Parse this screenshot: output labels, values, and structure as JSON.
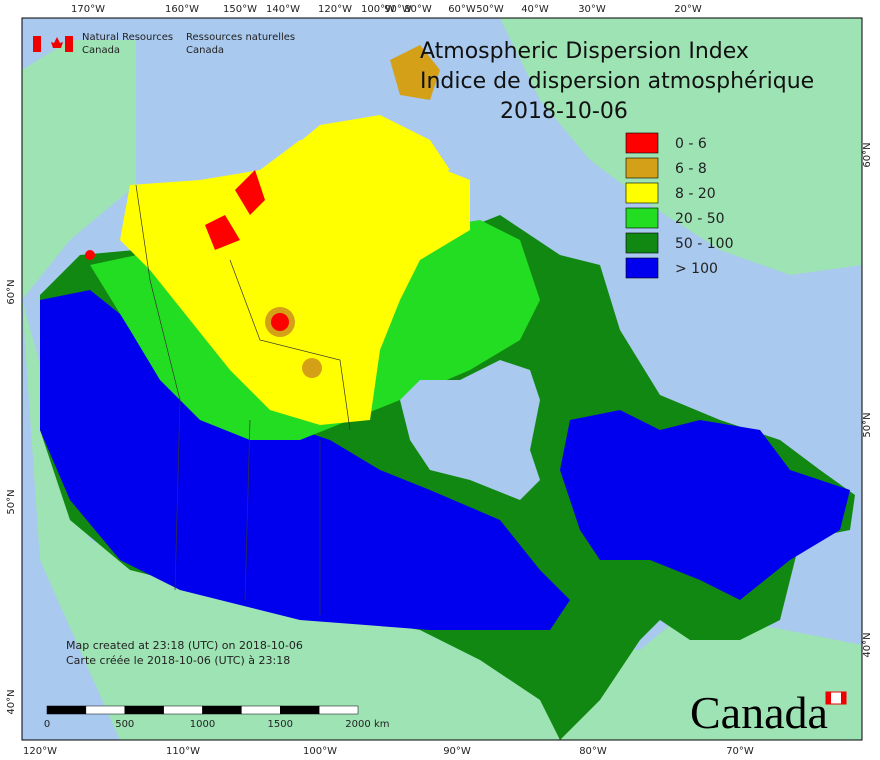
{
  "header": {
    "agency_en": [
      "Natural Resources",
      "Canada"
    ],
    "agency_fr": [
      "Ressources naturelles",
      "Canada"
    ]
  },
  "title": {
    "lines": [
      "Atmospheric Dispersion Index",
      "Indice de dispersion atmosphérique"
    ],
    "date": "2018-10-06"
  },
  "legend": [
    {
      "label": "0 - 6",
      "color": "#ff0000"
    },
    {
      "label": "6 - 8",
      "color": "#d4a017"
    },
    {
      "label": "8 - 20",
      "color": "#ffff00"
    },
    {
      "label": "20 - 50",
      "color": "#22dd22"
    },
    {
      "label": "50 - 100",
      "color": "#118811"
    },
    {
      "label": "> 100",
      "color": "#0000ee"
    }
  ],
  "graticule": {
    "top": [
      "170°W",
      "160°W",
      "150°W",
      "140°W",
      "120°W",
      "100°W",
      "90°W",
      "80°W",
      "60°W",
      "50°W",
      "40°W",
      "30°W",
      "20°W"
    ],
    "bottom": [
      "120°W",
      "110°W",
      "100°W",
      "90°W",
      "80°W",
      "70°W"
    ],
    "left": [
      "60°N",
      "50°N",
      "40°N"
    ],
    "right": [
      "60°N",
      "50°N",
      "40°N"
    ]
  },
  "notes": [
    "Map created at 23:18 (UTC) on 2018-10-06",
    "Carte créée le 2018-10-06 (UTC) à 23:18"
  ],
  "scale_bar": {
    "labels": [
      "0",
      "500",
      "1000",
      "1500",
      "2000"
    ],
    "unit": "km"
  },
  "wordmark": "Canada"
}
